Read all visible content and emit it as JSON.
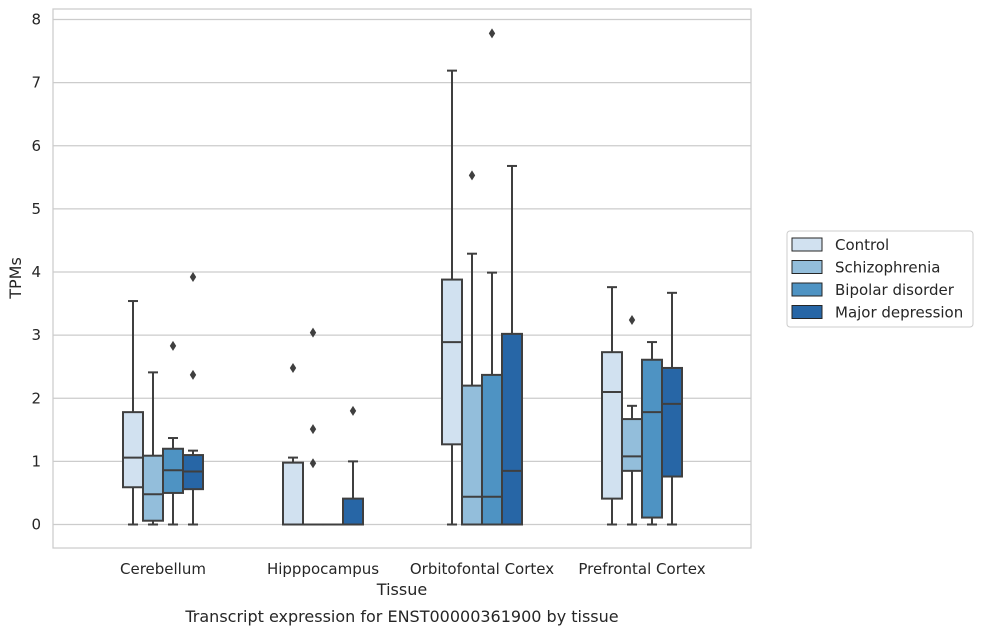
{
  "caption": "Transcript expression for ENST00000361900 by tissue",
  "colors": {
    "Control": "#d1e1f0",
    "Schizophrenia": "#93bedb",
    "Bipolar disorder": "#4e93c3",
    "Major depression": "#2766a6",
    "edge": "#3f3f3f",
    "grid": "#cccccc",
    "frame": "#cccccc"
  },
  "chart_data": {
    "type": "box",
    "xlabel": "Tissue",
    "ylabel": "TPMs",
    "ylim": [
      -0.38,
      8.18
    ],
    "yticks": [
      0,
      1,
      2,
      3,
      4,
      5,
      6,
      7,
      8
    ],
    "grid": "horizontal",
    "legend_position": "right",
    "categories": [
      "Cerebellum",
      "Hipppocampus",
      "Orbitofontal Cortex",
      "Prefrontal Cortex"
    ],
    "series": [
      {
        "name": "Control",
        "boxes": [
          {
            "whislo": 0,
            "q1": 0.59,
            "med": 1.06,
            "q3": 1.78,
            "whishi": 3.54,
            "fliers": []
          },
          {
            "whislo": 0,
            "q1": 0,
            "med": 0,
            "q3": 0.98,
            "whishi": 1.06,
            "fliers": [
              2.48
            ]
          },
          {
            "whislo": 0,
            "q1": 1.27,
            "med": 2.89,
            "q3": 3.88,
            "whishi": 7.19,
            "fliers": []
          },
          {
            "whislo": 0,
            "q1": 0.41,
            "med": 2.1,
            "q3": 2.73,
            "whishi": 3.76,
            "fliers": []
          }
        ]
      },
      {
        "name": "Schizophrenia",
        "boxes": [
          {
            "whislo": 0,
            "q1": 0.06,
            "med": 0.48,
            "q3": 1.09,
            "whishi": 2.41,
            "fliers": []
          },
          {
            "whislo": 0,
            "q1": 0,
            "med": 0,
            "q3": 0,
            "whishi": 0,
            "fliers": [
              0.97,
              1.51,
              3.04
            ]
          },
          {
            "whislo": 0,
            "q1": 0,
            "med": 0.44,
            "q3": 2.2,
            "whishi": 4.29,
            "fliers": [
              5.53
            ]
          },
          {
            "whislo": 0,
            "q1": 0.85,
            "med": 1.08,
            "q3": 1.67,
            "whishi": 1.88,
            "fliers": [
              3.24
            ]
          }
        ]
      },
      {
        "name": "Bipolar disorder",
        "boxes": [
          {
            "whislo": 0,
            "q1": 0.5,
            "med": 0.86,
            "q3": 1.2,
            "whishi": 1.37,
            "fliers": [
              2.83
            ]
          },
          {
            "whislo": 0,
            "q1": 0,
            "med": 0,
            "q3": 0,
            "whishi": 0,
            "fliers": []
          },
          {
            "whislo": 0,
            "q1": 0,
            "med": 0.44,
            "q3": 2.37,
            "whishi": 3.99,
            "fliers": [
              7.78
            ]
          },
          {
            "whislo": 0,
            "q1": 0.11,
            "med": 1.78,
            "q3": 2.61,
            "whishi": 2.89,
            "fliers": []
          }
        ]
      },
      {
        "name": "Major depression",
        "boxes": [
          {
            "whislo": 0,
            "q1": 0.56,
            "med": 0.84,
            "q3": 1.1,
            "whishi": 1.17,
            "fliers": [
              2.37,
              3.92
            ]
          },
          {
            "whislo": 0,
            "q1": 0,
            "med": 0,
            "q3": 0.41,
            "whishi": 1.0,
            "fliers": [
              1.8
            ]
          },
          {
            "whislo": 0,
            "q1": 0,
            "med": 0.85,
            "q3": 3.02,
            "whishi": 5.68,
            "fliers": []
          },
          {
            "whislo": 0,
            "q1": 0.76,
            "med": 1.91,
            "q3": 2.48,
            "whishi": 3.67,
            "fliers": []
          }
        ]
      }
    ]
  }
}
